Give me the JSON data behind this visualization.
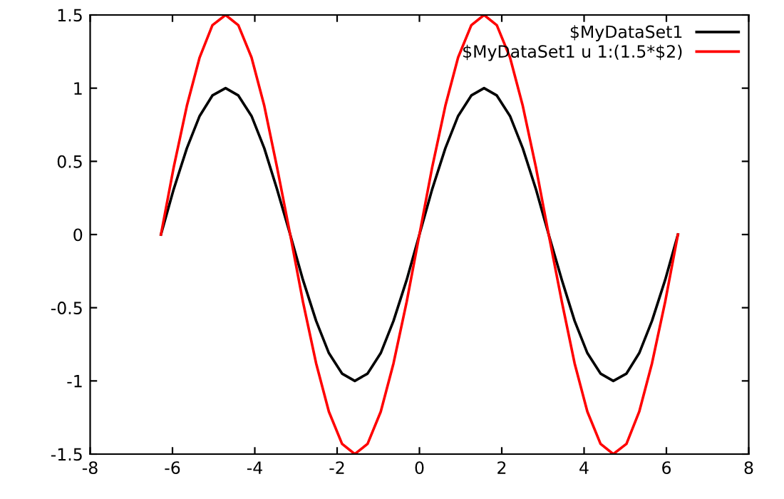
{
  "chart_data": {
    "type": "line",
    "x": [
      -6.28,
      -5.97,
      -5.65,
      -5.34,
      -5.03,
      -4.71,
      -4.4,
      -4.08,
      -3.77,
      -3.46,
      -3.14,
      -2.83,
      -2.51,
      -2.2,
      -1.88,
      -1.57,
      -1.26,
      -0.94,
      -0.63,
      -0.31,
      0,
      0.31,
      0.63,
      0.94,
      1.26,
      1.57,
      1.88,
      2.2,
      2.51,
      2.83,
      3.14,
      3.46,
      3.77,
      4.08,
      4.4,
      4.71,
      5.03,
      5.34,
      5.65,
      5.97,
      6.28
    ],
    "series": [
      {
        "name": "$MyDataSet1",
        "color": "#000000",
        "values": [
          0,
          0.31,
          0.59,
          0.81,
          0.95,
          1,
          0.95,
          0.81,
          0.59,
          0.31,
          0,
          -0.31,
          -0.59,
          -0.81,
          -0.95,
          -1,
          -0.95,
          -0.81,
          -0.59,
          -0.31,
          0,
          0.31,
          0.59,
          0.81,
          0.95,
          1,
          0.95,
          0.81,
          0.59,
          0.31,
          0,
          -0.31,
          -0.59,
          -0.81,
          -0.95,
          -1,
          -0.95,
          -0.81,
          -0.59,
          -0.31,
          0
        ]
      },
      {
        "name": "$MyDataSet1 u 1:(1.5*$2)",
        "color": "#ff0000",
        "values": [
          0,
          0.46,
          0.88,
          1.21,
          1.43,
          1.5,
          1.43,
          1.21,
          0.88,
          0.46,
          0,
          -0.46,
          -0.88,
          -1.21,
          -1.43,
          -1.5,
          -1.43,
          -1.21,
          -0.88,
          -0.46,
          0,
          0.46,
          0.88,
          1.21,
          1.43,
          1.5,
          1.43,
          1.21,
          0.88,
          0.46,
          0,
          -0.46,
          -0.88,
          -1.21,
          -1.43,
          -1.5,
          -1.43,
          -1.21,
          -0.88,
          -0.46,
          0
        ]
      }
    ],
    "xlim": [
      -8,
      8
    ],
    "xticks": [
      -8,
      -6,
      -4,
      -2,
      0,
      2,
      4,
      6,
      8
    ],
    "ylim": [
      -1.5,
      1.5
    ],
    "yticks": [
      -1.5,
      -1,
      -0.5,
      0,
      0.5,
      1,
      1.5
    ],
    "grid": false,
    "legend": "top right",
    "marker": "none",
    "line_style": "solid"
  }
}
